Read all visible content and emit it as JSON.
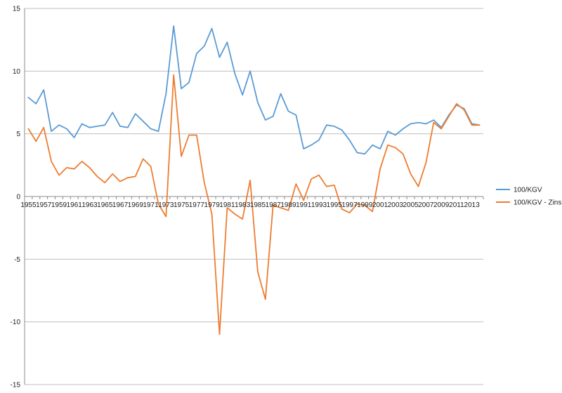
{
  "chart_data": {
    "type": "line",
    "title": "",
    "xlabel": "",
    "ylabel": "",
    "ylim": [
      -15,
      15
    ],
    "yticks": [
      -15,
      -10,
      -5,
      0,
      5,
      10,
      15
    ],
    "grid": "horizontal",
    "legend_position": "right",
    "x": [
      1955,
      1956,
      1957,
      1958,
      1959,
      1960,
      1961,
      1962,
      1963,
      1964,
      1965,
      1966,
      1967,
      1968,
      1969,
      1970,
      1971,
      1972,
      1973,
      1974,
      1975,
      1976,
      1977,
      1978,
      1979,
      1980,
      1981,
      1982,
      1983,
      1984,
      1985,
      1986,
      1987,
      1988,
      1989,
      1990,
      1991,
      1992,
      1993,
      1994,
      1995,
      1996,
      1997,
      1998,
      1999,
      2000,
      2001,
      2002,
      2003,
      2004,
      2005,
      2006,
      2007,
      2008,
      2009,
      2010,
      2011,
      2012,
      2013,
      2014
    ],
    "x_tick_labels": [
      "1955",
      "1957",
      "1959",
      "1961",
      "1963",
      "1965",
      "1967",
      "1969",
      "1971",
      "1973",
      "1975",
      "1977",
      "1979",
      "1981",
      "1983",
      "1985",
      "1987",
      "1989",
      "1991",
      "1993",
      "1995",
      "1997",
      "1999",
      "2001",
      "2003",
      "2005",
      "2007",
      "2009",
      "2011",
      "2013"
    ],
    "series": [
      {
        "name": "100/KGV",
        "color": "#5b9bd5",
        "values": [
          7.9,
          7.4,
          8.5,
          5.2,
          5.7,
          5.4,
          4.7,
          5.8,
          5.5,
          5.6,
          5.7,
          6.7,
          5.6,
          5.5,
          6.6,
          6.0,
          5.4,
          5.2,
          8.2,
          13.6,
          8.6,
          9.1,
          11.4,
          12.0,
          13.4,
          11.1,
          12.3,
          9.8,
          8.1,
          10.0,
          7.5,
          6.1,
          6.4,
          8.2,
          6.8,
          6.5,
          3.8,
          4.1,
          4.5,
          5.7,
          5.6,
          5.3,
          4.5,
          3.5,
          3.4,
          4.1,
          3.8,
          5.2,
          4.9,
          5.4,
          5.8,
          5.9,
          5.8,
          6.1,
          5.5,
          6.5,
          7.3,
          7.0,
          5.8,
          5.7
        ]
      },
      {
        "name": "100/KGV - Zins",
        "color": "#ed7d31",
        "values": [
          5.4,
          4.4,
          5.5,
          2.8,
          1.7,
          2.3,
          2.2,
          2.8,
          2.3,
          1.6,
          1.1,
          1.8,
          1.2,
          1.5,
          1.6,
          3.0,
          2.4,
          -0.6,
          -1.6,
          9.7,
          3.2,
          4.9,
          4.9,
          1.1,
          -1.4,
          -11.0,
          -0.9,
          -1.4,
          -1.8,
          1.3,
          -6.0,
          -8.2,
          -0.7,
          -0.9,
          -1.1,
          1.0,
          -0.3,
          1.4,
          1.7,
          0.8,
          0.9,
          -1.0,
          -1.3,
          -0.6,
          -0.7,
          -1.2,
          2.2,
          4.1,
          3.9,
          3.4,
          1.8,
          0.8,
          2.7,
          5.9,
          5.4,
          6.4,
          7.4,
          6.9,
          5.7,
          5.7
        ]
      }
    ]
  }
}
